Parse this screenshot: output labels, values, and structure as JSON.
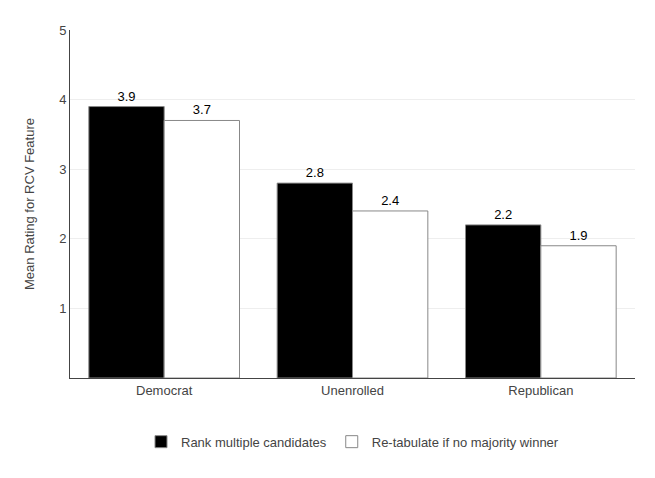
{
  "chart_data": {
    "type": "bar",
    "categories": [
      "Democrat",
      "Unenrolled",
      "Republican"
    ],
    "series": [
      {
        "name": "Rank multiple candidates",
        "color": "#000000",
        "values": [
          3.9,
          2.8,
          2.2
        ]
      },
      {
        "name": "Re-tabulate if no majority winner",
        "color": "#ffffff",
        "values": [
          3.7,
          2.4,
          1.9
        ]
      }
    ],
    "ylabel": "Mean Rating for RCV Feature",
    "ylim": [
      0,
      5
    ],
    "yticks": [
      1,
      2,
      3,
      4,
      5
    ],
    "grid": true,
    "data_labels": true,
    "legend": "bottom"
  }
}
